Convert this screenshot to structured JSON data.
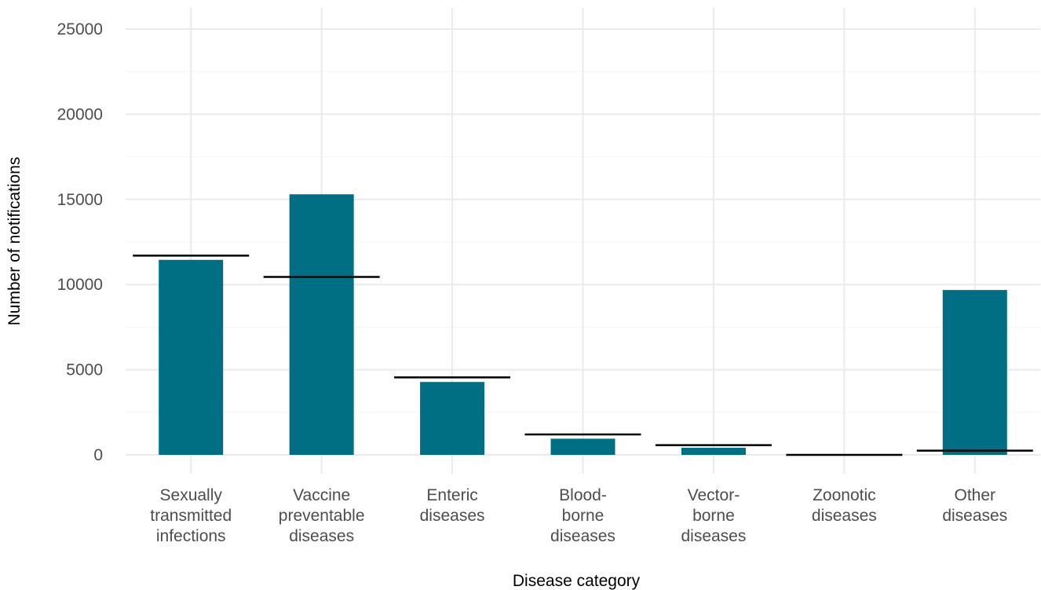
{
  "chart_data": {
    "type": "bar",
    "title": "",
    "xlabel": "Disease category",
    "ylabel": "Number of notifications",
    "ylim": [
      0,
      25000
    ],
    "yticks": [
      "0",
      "5000",
      "10000",
      "15000",
      "20000",
      "25000"
    ],
    "grid": true,
    "legend": "none",
    "categories": [
      [
        "Sexually",
        "transmitted",
        "infections"
      ],
      [
        "Vaccine",
        "preventable",
        "diseases"
      ],
      [
        "Enteric",
        "diseases"
      ],
      [
        "Blood-",
        "borne",
        "diseases"
      ],
      [
        "Vector-",
        "borne",
        "diseases"
      ],
      [
        "Zoonotic",
        "diseases"
      ],
      [
        "Other",
        "diseases"
      ]
    ],
    "values": [
      11450,
      15300,
      4280,
      950,
      420,
      0,
      9680
    ],
    "reference_lines": [
      11700,
      10450,
      4550,
      1200,
      570,
      0,
      250
    ],
    "colors": {
      "bar": "#006F83",
      "reference": "#000000",
      "grid_major": "#ebebeb",
      "grid_minor": "#f5f5f5"
    }
  }
}
